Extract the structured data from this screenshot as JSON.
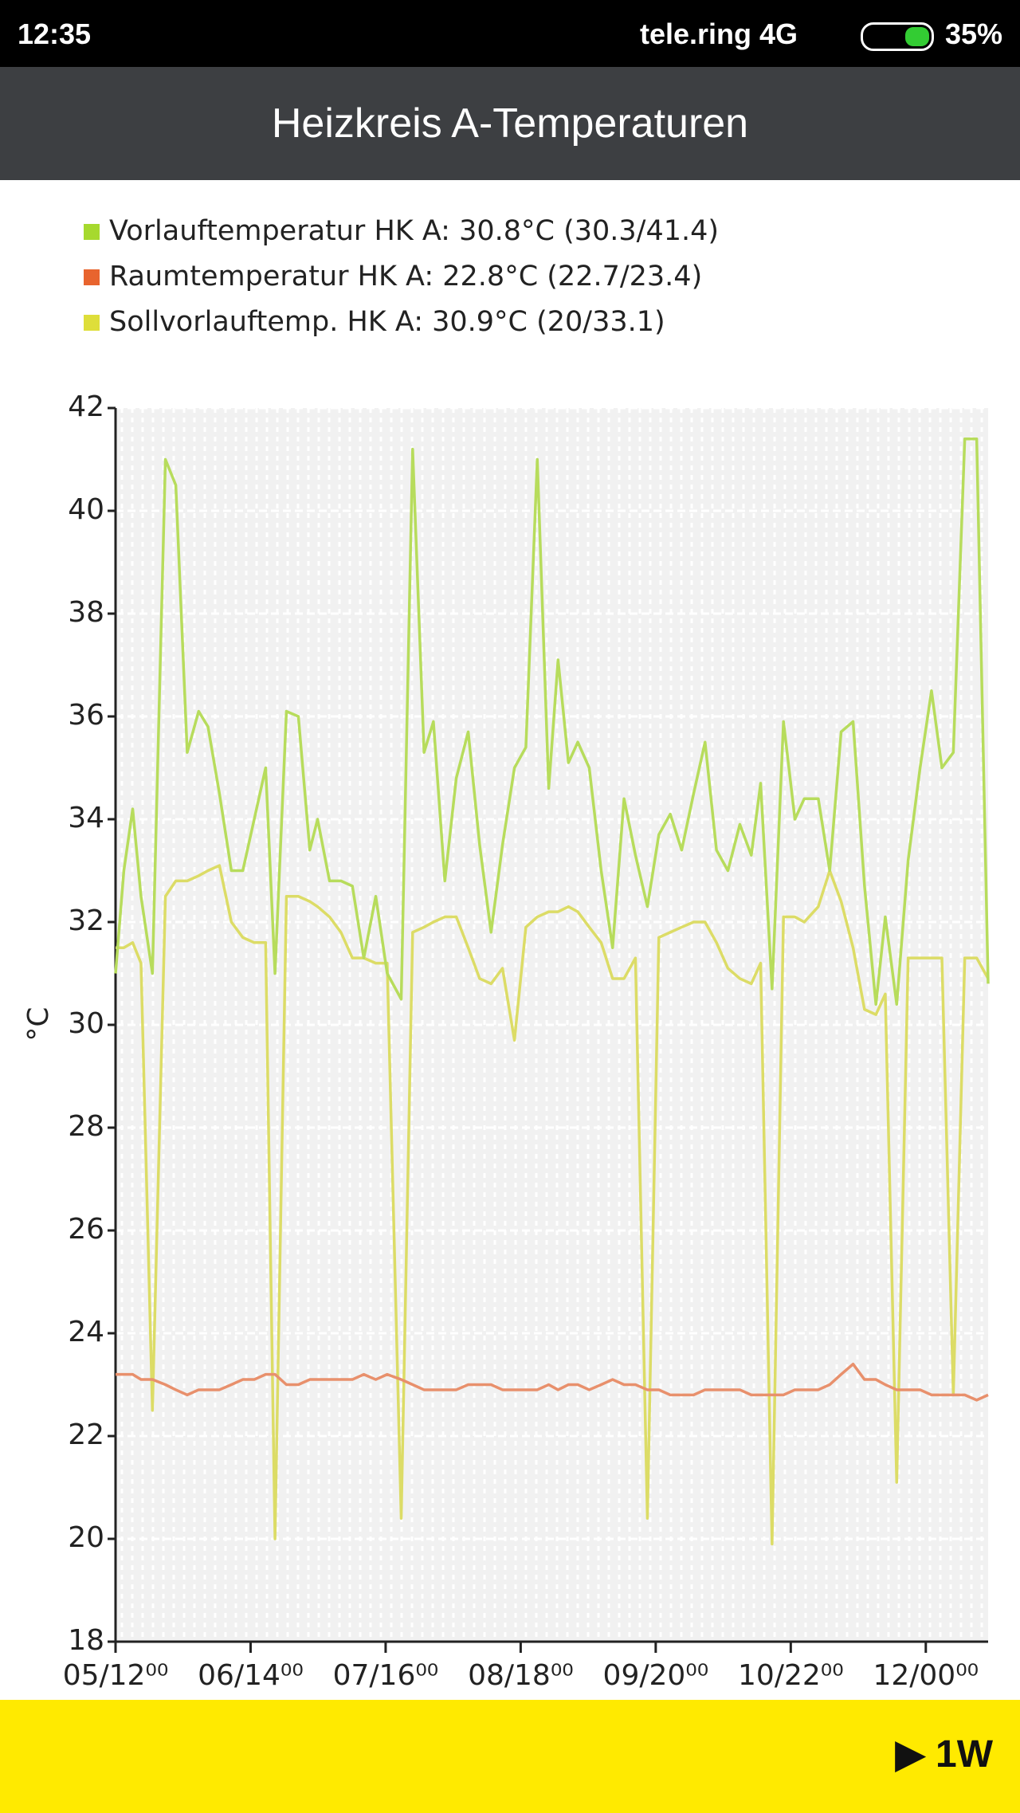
{
  "status_bar": {
    "time": "12:35",
    "carrier": "tele.ring 4G",
    "battery": "35%"
  },
  "header": {
    "title": "Heizkreis A-Temperaturen"
  },
  "footer": {
    "range_button": "1W"
  },
  "chart_data": {
    "type": "line",
    "y_label": "°C",
    "grid": true,
    "x": [
      0,
      1.6,
      3.3,
      4.9,
      7.1,
      9.6,
      11.6,
      13.8,
      16.0,
      17.8,
      20.0,
      22.3,
      24.5,
      26.7,
      28.9,
      30.7,
      32.9,
      35.2,
      37.4,
      38.9,
      41.2,
      43.4,
      45.6,
      47.8,
      50.1,
      52.3,
      55.0,
      57.2,
      59.4,
      61.2,
      63.4,
      65.6,
      67.9,
      70.1,
      72.3,
      74.5,
      76.8,
      79.0,
      81.2,
      83.4,
      85.2,
      87.2,
      89.0,
      91.2,
      93.5,
      95.7,
      97.9,
      100.1,
      102.4,
      104.6,
      106.8,
      109.0,
      111.3,
      113.5,
      115.7,
      117.9,
      120.2,
      122.4,
      124.2,
      126.4,
      128.6,
      130.8,
      132.6,
      135.3,
      137.5,
      139.7,
      142.0,
      144.2,
      146.4,
      148.2,
      150.4,
      152.6,
      154.9,
      157.1,
      159.1,
      161.3,
      163.5,
      165.8,
      168.0
    ],
    "xlim": [
      0,
      168
    ],
    "xticks": [
      {
        "value": 0,
        "label": "05/12⁰⁰"
      },
      {
        "value": 26,
        "label": "06/14⁰⁰"
      },
      {
        "value": 52,
        "label": "07/16⁰⁰"
      },
      {
        "value": 78,
        "label": "08/18⁰⁰"
      },
      {
        "value": 104,
        "label": "09/20⁰⁰"
      },
      {
        "value": 130,
        "label": "10/22⁰⁰"
      },
      {
        "value": 156,
        "label": "12/00⁰⁰"
      }
    ],
    "ylim": [
      18,
      42
    ],
    "yticks": [
      18,
      20,
      22,
      24,
      26,
      28,
      30,
      32,
      34,
      36,
      38,
      40,
      42
    ],
    "series": [
      {
        "name": "Vorlauftemperatur HK A: 30.8°C (30.3/41.4)",
        "color": "#b7dc5c",
        "legend_color": "#a6d92e",
        "values": [
          31.0,
          33.0,
          34.2,
          32.5,
          31.0,
          41.0,
          40.5,
          35.3,
          36.1,
          35.8,
          34.5,
          33.0,
          33.0,
          34.0,
          35.0,
          31.0,
          36.1,
          36.0,
          33.4,
          34.0,
          32.8,
          32.8,
          32.7,
          31.3,
          32.5,
          31.0,
          30.5,
          41.2,
          35.3,
          35.9,
          32.8,
          34.8,
          35.7,
          33.5,
          31.8,
          33.5,
          35.0,
          35.4,
          41.0,
          34.6,
          37.1,
          35.1,
          35.5,
          35.0,
          33.0,
          31.5,
          34.4,
          33.3,
          32.3,
          33.7,
          34.1,
          33.4,
          34.5,
          35.5,
          33.4,
          33.0,
          33.9,
          33.3,
          34.7,
          30.7,
          35.9,
          34.0,
          34.4,
          34.4,
          33.0,
          35.7,
          35.9,
          32.7,
          30.4,
          32.1,
          30.4,
          33.2,
          35.0,
          36.5,
          35.0,
          35.3,
          41.4,
          41.4,
          30.8
        ]
      },
      {
        "name": "Raumtemperatur HK A: 22.8°C (22.7/23.4)",
        "color": "#e8906c",
        "legend_color": "#e8642e",
        "values": [
          23.2,
          23.2,
          23.2,
          23.1,
          23.1,
          23.0,
          22.9,
          22.8,
          22.9,
          22.9,
          22.9,
          23.0,
          23.1,
          23.1,
          23.2,
          23.2,
          23.0,
          23.0,
          23.1,
          23.1,
          23.1,
          23.1,
          23.1,
          23.2,
          23.1,
          23.2,
          23.1,
          23.0,
          22.9,
          22.9,
          22.9,
          22.9,
          23.0,
          23.0,
          23.0,
          22.9,
          22.9,
          22.9,
          22.9,
          23.0,
          22.9,
          23.0,
          23.0,
          22.9,
          23.0,
          23.1,
          23.0,
          23.0,
          22.9,
          22.9,
          22.8,
          22.8,
          22.8,
          22.9,
          22.9,
          22.9,
          22.9,
          22.8,
          22.8,
          22.8,
          22.8,
          22.9,
          22.9,
          22.9,
          23.0,
          23.2,
          23.4,
          23.1,
          23.1,
          23.0,
          22.9,
          22.9,
          22.9,
          22.8,
          22.8,
          22.8,
          22.8,
          22.7,
          22.8
        ]
      },
      {
        "name": "Sollvorlauftemp. HK A: 30.9°C (20/33.1)",
        "color": "#dcdc66",
        "legend_color": "#dede3a",
        "values": [
          31.5,
          31.5,
          31.6,
          31.2,
          22.5,
          32.5,
          32.8,
          32.8,
          32.9,
          33.0,
          33.1,
          32.0,
          31.7,
          31.6,
          31.6,
          20.0,
          32.5,
          32.5,
          32.4,
          32.3,
          32.1,
          31.8,
          31.3,
          31.3,
          31.2,
          31.2,
          20.4,
          31.8,
          31.9,
          32.0,
          32.1,
          32.1,
          31.5,
          30.9,
          30.8,
          31.1,
          29.7,
          31.9,
          32.1,
          32.2,
          32.2,
          32.3,
          32.2,
          31.9,
          31.6,
          30.9,
          30.9,
          31.3,
          20.4,
          31.7,
          31.8,
          31.9,
          32.0,
          32.0,
          31.6,
          31.1,
          30.9,
          30.8,
          31.2,
          19.9,
          32.1,
          32.1,
          32.0,
          32.3,
          33.0,
          32.4,
          31.5,
          30.3,
          30.2,
          30.6,
          21.1,
          31.3,
          31.3,
          31.3,
          31.3,
          22.8,
          31.3,
          31.3,
          30.9
        ]
      }
    ]
  }
}
